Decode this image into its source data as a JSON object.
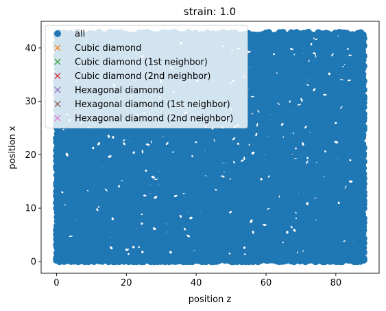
{
  "chart_data": {
    "type": "scatter",
    "title": "strain: 1.0",
    "xlabel": "position z",
    "ylabel": "position x",
    "xlim": [
      -4.4,
      92.4
    ],
    "ylim": [
      -2.2,
      45.0
    ],
    "xticks": [
      0,
      20,
      40,
      60,
      80
    ],
    "yticks": [
      0,
      10,
      20,
      30,
      40
    ],
    "xtick_labels": [
      "0",
      "20",
      "40",
      "60",
      "80"
    ],
    "ytick_labels": [
      "0",
      "10",
      "20",
      "30",
      "40"
    ],
    "grid": false,
    "legend_position": "top-left",
    "series": [
      {
        "name": "all",
        "marker": "circle",
        "color": "#1f77b4",
        "x_range": [
          0,
          88
        ],
        "y_range": [
          0,
          43
        ],
        "distribution": "uniform dense fill"
      },
      {
        "name": "Cubic diamond",
        "marker": "x",
        "color": "#ff7f0e",
        "x": [],
        "y": []
      },
      {
        "name": "Cubic diamond (1st neighbor)",
        "marker": "x",
        "color": "#2ca02c",
        "x": [],
        "y": []
      },
      {
        "name": "Cubic diamond (2nd neighbor)",
        "marker": "x",
        "color": "#d62728",
        "x": [],
        "y": []
      },
      {
        "name": "Hexagonal diamond",
        "marker": "x",
        "color": "#9467bd",
        "x": [],
        "y": []
      },
      {
        "name": "Hexagonal diamond (1st neighbor)",
        "marker": "x",
        "color": "#8c564b",
        "x": [],
        "y": []
      },
      {
        "name": "Hexagonal diamond (2nd neighbor)",
        "marker": "x",
        "color": "#e377c2",
        "x": [],
        "y": []
      }
    ]
  }
}
